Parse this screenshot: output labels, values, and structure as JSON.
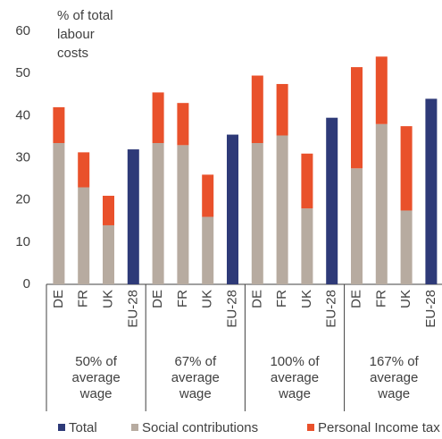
{
  "chart_data": {
    "type": "stacked_bar",
    "y_label_lines": [
      "% of total",
      "labour",
      "costs"
    ],
    "categories": [
      "DE",
      "FR",
      "UK",
      "EU-28",
      "DE",
      "FR",
      "UK",
      "EU-28",
      "DE",
      "FR",
      "UK",
      "EU-28",
      "DE",
      "FR",
      "UK",
      "EU-28"
    ],
    "groups": [
      {
        "label_lines": [
          "50% of",
          "average",
          "wage"
        ]
      },
      {
        "label_lines": [
          "67% of",
          "average",
          "wage"
        ]
      },
      {
        "label_lines": [
          "100% of",
          "average",
          "wage"
        ]
      },
      {
        "label_lines": [
          "167% of",
          "average",
          "wage"
        ]
      }
    ],
    "series": [
      {
        "name": "Total",
        "color": "#2e3a78",
        "values": [
          null,
          null,
          null,
          32,
          null,
          null,
          null,
          35.5,
          null,
          null,
          null,
          39.5,
          null,
          null,
          null,
          44
        ]
      },
      {
        "name": "Social contributions",
        "color": "#b7aba0",
        "values": [
          33.5,
          23,
          14,
          null,
          33.5,
          33,
          16,
          null,
          33.5,
          35.3,
          18,
          null,
          27.5,
          38,
          17.5,
          null
        ]
      },
      {
        "name": "Personal Income tax",
        "color": "#e9512b",
        "values": [
          8.5,
          8.3,
          7,
          null,
          12,
          10,
          10,
          null,
          16,
          12.2,
          13,
          null,
          24,
          16,
          20,
          null
        ]
      }
    ],
    "ylim": [
      0,
      60
    ],
    "yticks": [
      0,
      10,
      20,
      30,
      40,
      50,
      60
    ]
  }
}
